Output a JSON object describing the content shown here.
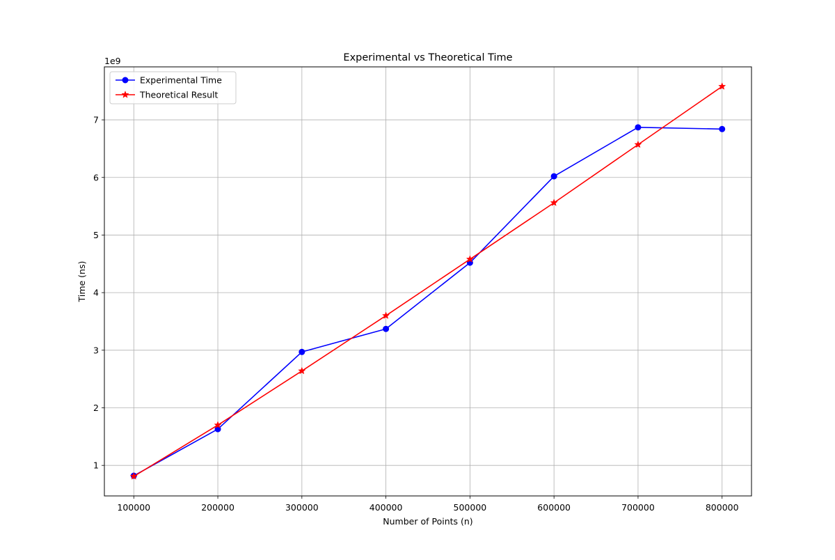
{
  "chart_data": {
    "type": "line",
    "title": "Experimental vs Theoretical Time",
    "xlabel": "Number of Points (n)",
    "ylabel": "Time (ns)",
    "y_offset_label": "1e9",
    "x": [
      100000,
      200000,
      300000,
      400000,
      500000,
      600000,
      700000,
      800000
    ],
    "x_ticks": [
      100000,
      200000,
      300000,
      400000,
      500000,
      600000,
      700000,
      800000
    ],
    "x_tick_labels": [
      "100000",
      "200000",
      "300000",
      "400000",
      "500000",
      "600000",
      "700000",
      "800000"
    ],
    "y_ticks": [
      1,
      2,
      3,
      4,
      5,
      6,
      7
    ],
    "y_tick_labels": [
      "1",
      "2",
      "3",
      "4",
      "5",
      "6",
      "7"
    ],
    "xlim": [
      65000,
      835000
    ],
    "ylim": [
      0.47,
      7.92
    ],
    "y_unit_multiplier": 1000000000.0,
    "grid": true,
    "legend_position": "top-left",
    "series": [
      {
        "name": "Experimental Time",
        "color": "#0000ff",
        "marker": "circle",
        "values": [
          0.82,
          1.63,
          2.97,
          3.37,
          4.52,
          6.02,
          6.87,
          6.84
        ]
      },
      {
        "name": "Theoretical Result",
        "color": "#ff0000",
        "marker": "star",
        "values": [
          0.81,
          1.7,
          2.64,
          3.6,
          4.58,
          5.56,
          6.57,
          7.58
        ]
      }
    ]
  }
}
